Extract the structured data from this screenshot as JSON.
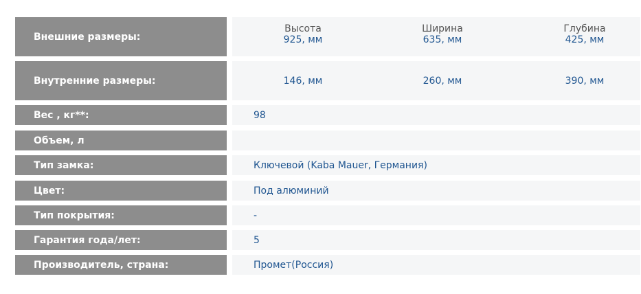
{
  "outer": {
    "label": "Внешние размеры:",
    "cols": [
      {
        "h": "Высота",
        "v": "925, мм"
      },
      {
        "h": "Ширина",
        "v": "635, мм"
      },
      {
        "h": "Глубина",
        "v": "425, мм"
      }
    ]
  },
  "inner": {
    "label": "Внутренние размеры:",
    "cols": [
      "146, мм",
      "260, мм",
      "390, мм"
    ]
  },
  "rows": [
    {
      "label": "Вес , кг**:",
      "value": "98"
    },
    {
      "label": "Объем, л",
      "value": ""
    },
    {
      "label": "Тип замка:",
      "value": "Ключевой (Kaba Mauer, Германия)"
    },
    {
      "label": "Цвет:",
      "value": "Под алюминий"
    },
    {
      "label": "Тип покрытия:",
      "value": "-"
    },
    {
      "label": "Гарантия года/лет:",
      "value": "5"
    },
    {
      "label": "Производитель, страна:",
      "value": "Промет(Россия)"
    }
  ]
}
